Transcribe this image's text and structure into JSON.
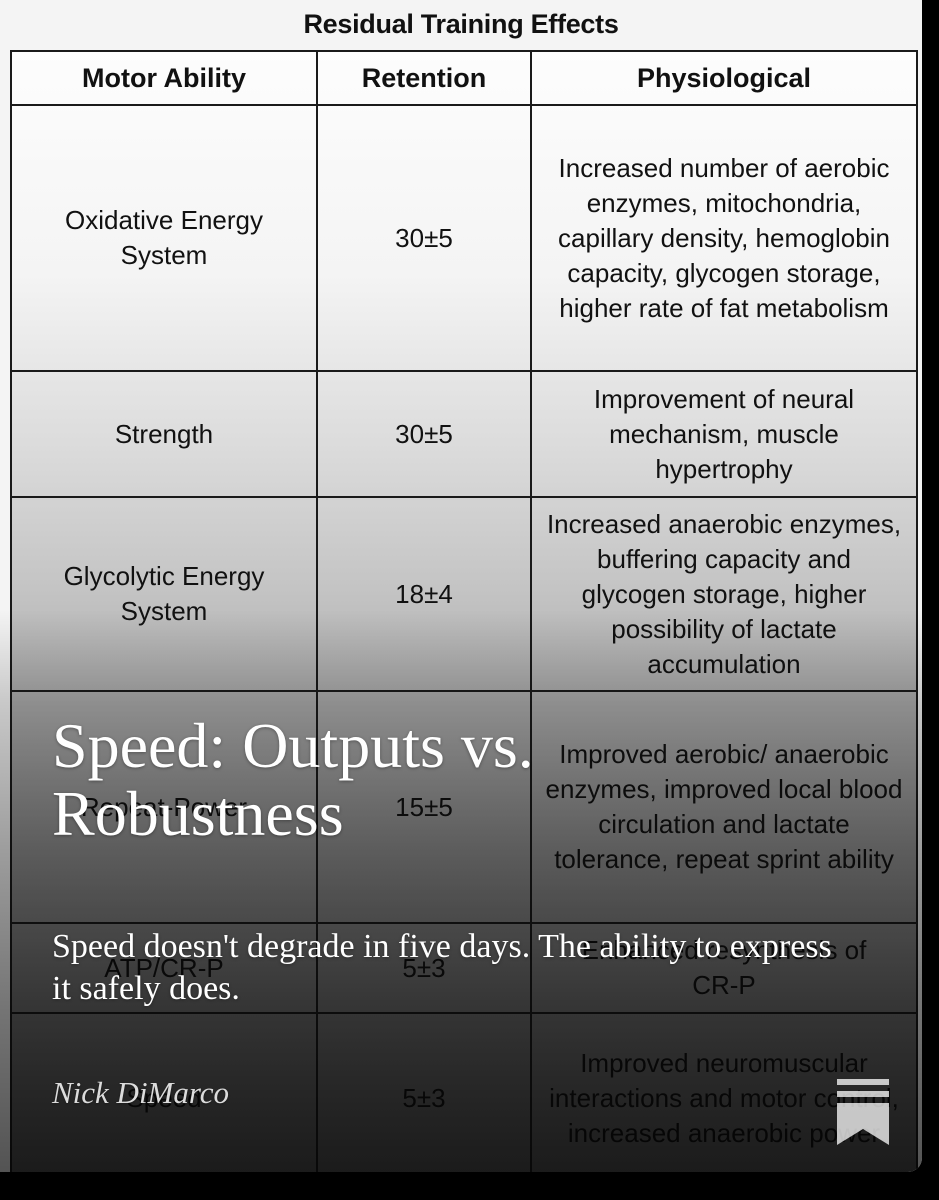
{
  "table": {
    "title": "Residual Training Effects",
    "headers": [
      "Motor Ability",
      "Retention",
      "Physiological"
    ],
    "rows": [
      {
        "ability": "Oxidative Energy System",
        "retention": "30±5",
        "physiological": "Increased number of aerobic enzymes, mitochondria, capillary density, hemoglobin capacity, glycogen storage, higher rate of fat metabolism"
      },
      {
        "ability": "Strength",
        "retention": "30±5",
        "physiological": "Improvement of neural mechanism, muscle hypertrophy"
      },
      {
        "ability": "Glycolytic Energy System",
        "retention": "18±4",
        "physiological": "Increased anaerobic enzymes, buffering capacity and glycogen storage, higher possibility of lactate accumulation"
      },
      {
        "ability": "Repeat-Power",
        "retention": "15±5",
        "physiological": "Improved aerobic/ anaerobic enzymes, improved local blood circulation and lactate tolerance, repeat sprint ability"
      },
      {
        "ability": "ATP/CR-P",
        "retention": "5±3",
        "physiological": "Enhanced resynthesis of CR-P"
      },
      {
        "ability": "Speed",
        "retention": "5±3",
        "physiological": "Improved neuromuscular interactions and motor control, increased anaerobic power"
      }
    ]
  },
  "post": {
    "title": "Speed: Outputs vs. Robustness",
    "subtitle": "Speed doesn't degrade in five days. The ability to express it safely does.",
    "author": "Nick DiMarco"
  },
  "icons": {
    "bookmark": "bookmark-icon"
  },
  "colors": {
    "table_border": "#1a1a1a",
    "overlay_text": "#ffffff",
    "author_text": "#dcdcdc",
    "background": "#000000"
  }
}
